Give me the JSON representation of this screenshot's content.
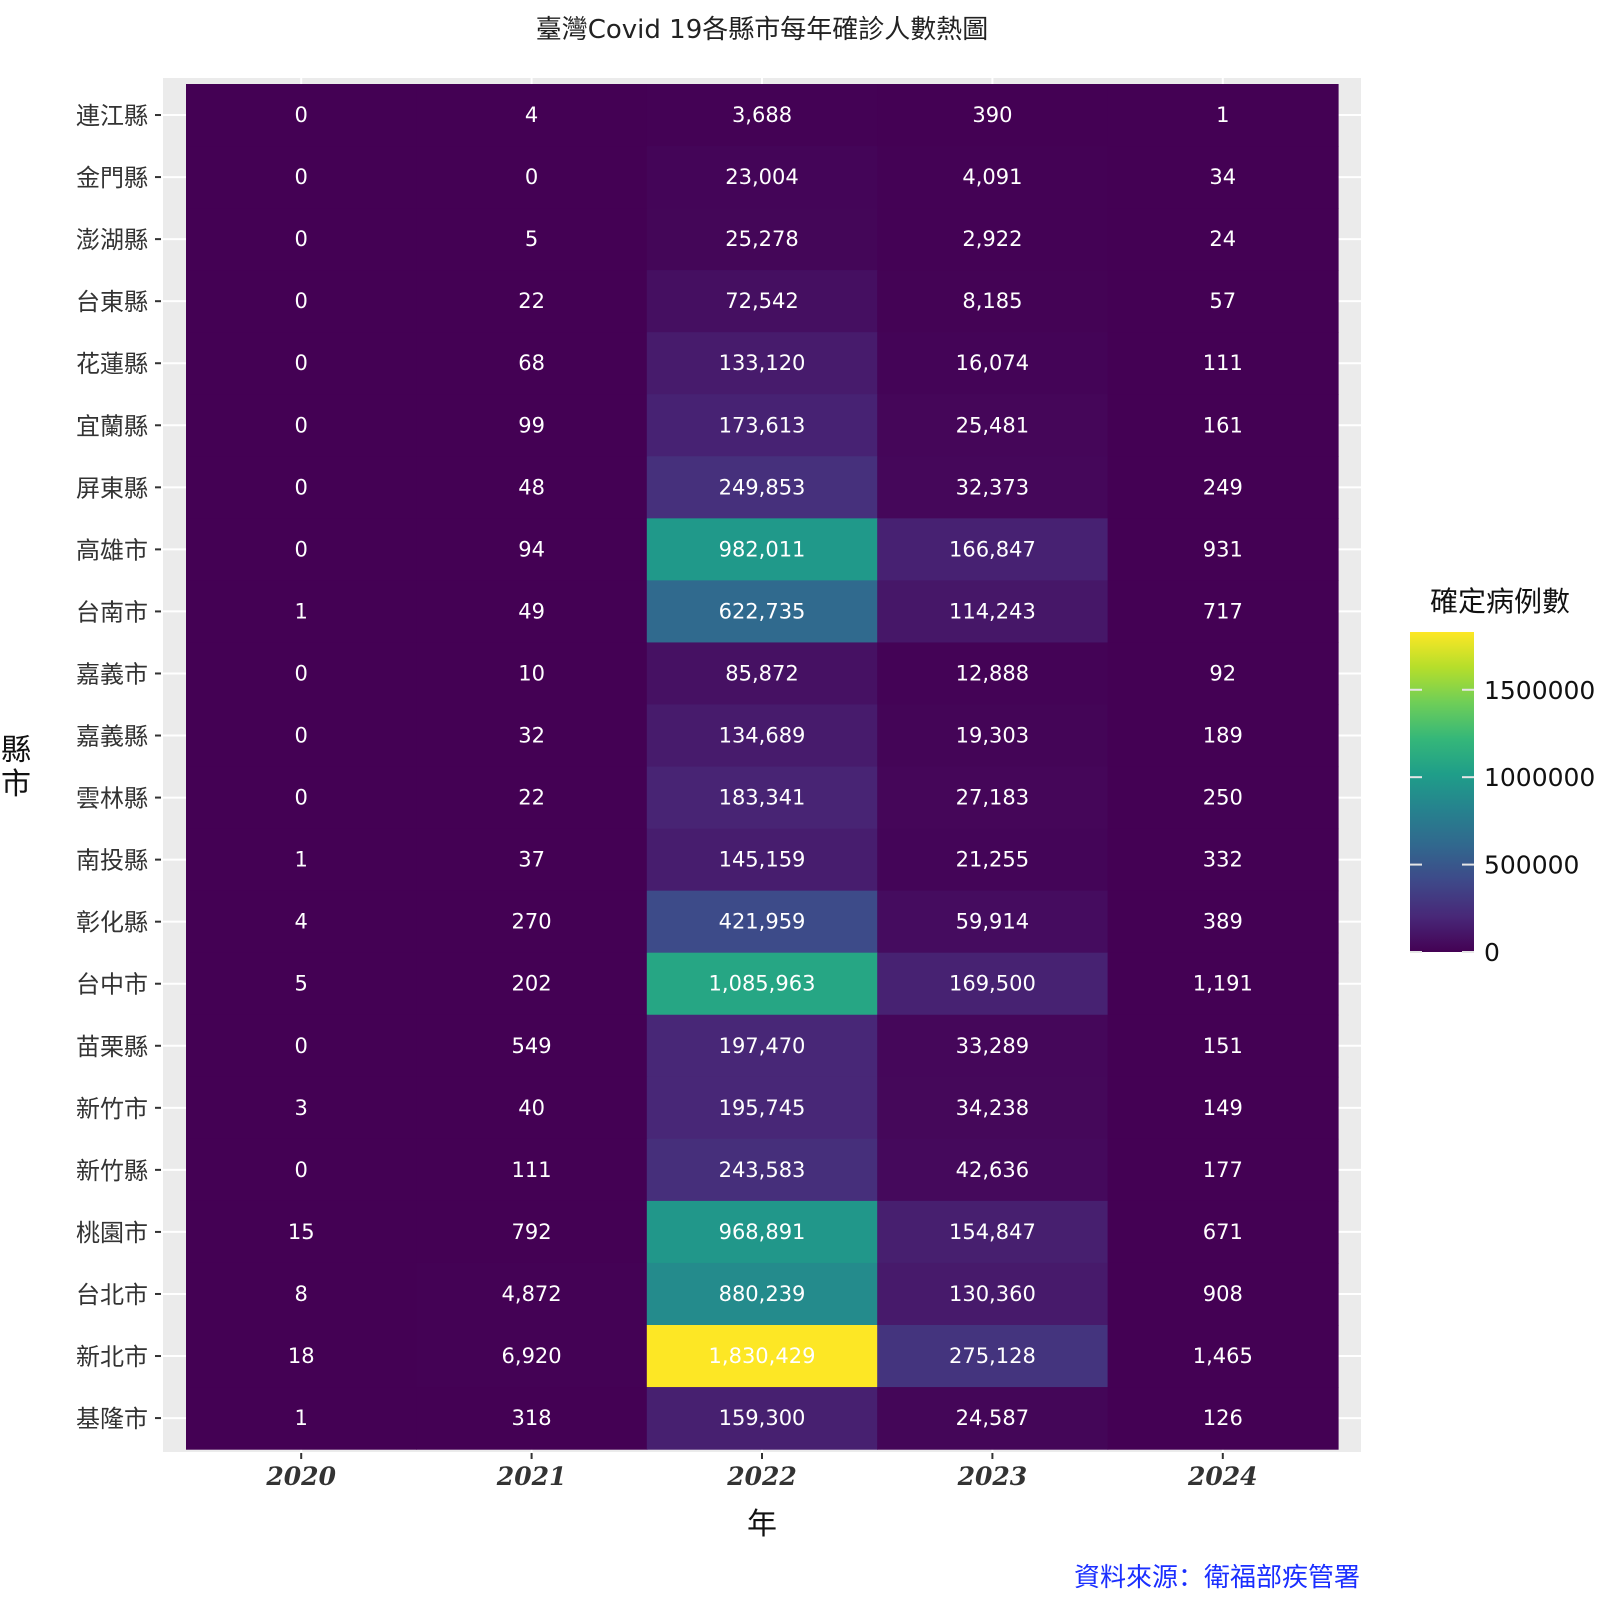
{
  "chart_data": {
    "type": "heatmap",
    "title": "臺灣Covid 19各縣市每年確診人數熱圖",
    "xlabel": "年",
    "ylabel": "縣市",
    "caption": "資料來源：衛福部疾管署",
    "x": [
      "2020",
      "2021",
      "2022",
      "2023",
      "2024"
    ],
    "y": [
      "連江縣",
      "金門縣",
      "澎湖縣",
      "台東縣",
      "花蓮縣",
      "宜蘭縣",
      "屏東縣",
      "高雄市",
      "台南市",
      "嘉義市",
      "嘉義縣",
      "雲林縣",
      "南投縣",
      "彰化縣",
      "台中市",
      "苗栗縣",
      "新竹市",
      "新竹縣",
      "桃園市",
      "台北市",
      "新北市",
      "基隆市"
    ],
    "values": [
      [
        0,
        4,
        3688,
        390,
        1
      ],
      [
        0,
        0,
        23004,
        4091,
        34
      ],
      [
        0,
        5,
        25278,
        2922,
        24
      ],
      [
        0,
        22,
        72542,
        8185,
        57
      ],
      [
        0,
        68,
        133120,
        16074,
        111
      ],
      [
        0,
        99,
        173613,
        25481,
        161
      ],
      [
        0,
        48,
        249853,
        32373,
        249
      ],
      [
        0,
        94,
        982011,
        166847,
        931
      ],
      [
        1,
        49,
        622735,
        114243,
        717
      ],
      [
        0,
        10,
        85872,
        12888,
        92
      ],
      [
        0,
        32,
        134689,
        19303,
        189
      ],
      [
        0,
        22,
        183341,
        27183,
        250
      ],
      [
        1,
        37,
        145159,
        21255,
        332
      ],
      [
        4,
        270,
        421959,
        59914,
        389
      ],
      [
        5,
        202,
        1085963,
        169500,
        1191
      ],
      [
        0,
        549,
        197470,
        33289,
        151
      ],
      [
        3,
        40,
        195745,
        34238,
        149
      ],
      [
        0,
        111,
        243583,
        42636,
        177
      ],
      [
        15,
        792,
        968891,
        154847,
        671
      ],
      [
        8,
        4872,
        880239,
        130360,
        908
      ],
      [
        18,
        6920,
        1830429,
        275128,
        1465
      ],
      [
        1,
        318,
        159300,
        24587,
        126
      ]
    ],
    "labels": [
      [
        "0",
        "4",
        "3,688",
        "390",
        "1"
      ],
      [
        "0",
        "0",
        "23,004",
        "4,091",
        "34"
      ],
      [
        "0",
        "5",
        "25,278",
        "2,922",
        "24"
      ],
      [
        "0",
        "22",
        "72,542",
        "8,185",
        "57"
      ],
      [
        "0",
        "68",
        "133,120",
        "16,074",
        "111"
      ],
      [
        "0",
        "99",
        "173,613",
        "25,481",
        "161"
      ],
      [
        "0",
        "48",
        "249,853",
        "32,373",
        "249"
      ],
      [
        "0",
        "94",
        "982,011",
        "166,847",
        "931"
      ],
      [
        "1",
        "49",
        "622,735",
        "114,243",
        "717"
      ],
      [
        "0",
        "10",
        "85,872",
        "12,888",
        "92"
      ],
      [
        "0",
        "32",
        "134,689",
        "19,303",
        "189"
      ],
      [
        "0",
        "22",
        "183,341",
        "27,183",
        "250"
      ],
      [
        "1",
        "37",
        "145,159",
        "21,255",
        "332"
      ],
      [
        "4",
        "270",
        "421,959",
        "59,914",
        "389"
      ],
      [
        "5",
        "202",
        "1,085,963",
        "169,500",
        "1,191"
      ],
      [
        "0",
        "549",
        "197,470",
        "33,289",
        "151"
      ],
      [
        "3",
        "40",
        "195,745",
        "34,238",
        "149"
      ],
      [
        "0",
        "111",
        "243,583",
        "42,636",
        "177"
      ],
      [
        "15",
        "792",
        "968,891",
        "154,847",
        "671"
      ],
      [
        "8",
        "4,872",
        "880,239",
        "130,360",
        "908"
      ],
      [
        "18",
        "6,920",
        "1,830,429",
        "275,128",
        "1,465"
      ],
      [
        "1",
        "318",
        "159,300",
        "24,587",
        "126"
      ]
    ],
    "legend": {
      "title": "確定病例數",
      "ticks": [
        0,
        500000,
        1000000,
        1500000
      ],
      "tick_labels": [
        "0",
        "500000",
        "1000000",
        "1500000"
      ],
      "range": [
        0,
        1830429
      ],
      "colormap": "viridis"
    },
    "colors": {
      "panel_background": "#ebebeb",
      "caption": "#1a2eff",
      "viridis": [
        "#440154",
        "#482878",
        "#3e4989",
        "#31688e",
        "#26828e",
        "#1f9e89",
        "#35b779",
        "#6ece58",
        "#b5de2b",
        "#fde725"
      ]
    }
  }
}
